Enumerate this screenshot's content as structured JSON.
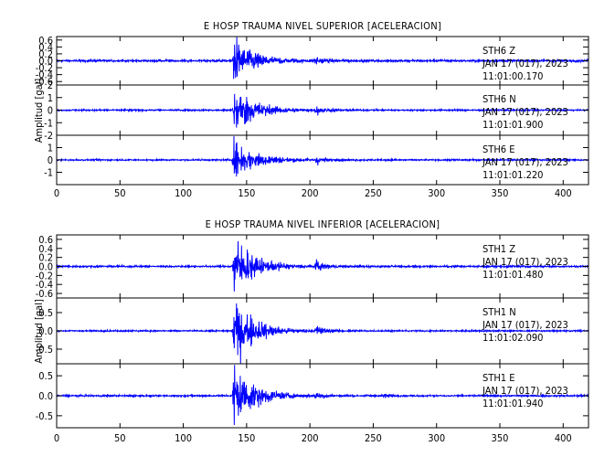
{
  "chart_data": [
    {
      "type": "line",
      "title": "E HOSP TRAUMA NIVEL SUPERIOR [ACELERACION]",
      "ylabel": "Amplitud [gal]",
      "xlim": [
        0,
        420
      ],
      "x_ticks": [
        0,
        50,
        100,
        150,
        200,
        250,
        300,
        350,
        400
      ],
      "color": "#0000ff",
      "traces": [
        {
          "station": "STH6",
          "component": "Z",
          "date": "JAN 17 (017), 2023",
          "time": "11:01:00.170",
          "ylim": [
            -0.7,
            0.7
          ],
          "y_ticks": [
            0.6,
            0.4,
            0.2,
            0.0,
            -0.2,
            -0.4,
            -0.6
          ],
          "y_tick_labels": [
            "0.6",
            "0.4",
            "0.2",
            "0.0",
            "-0.2",
            "-0.4",
            "-0.6"
          ],
          "events": [
            {
              "t": 140,
              "amp": 0.62,
              "decay": 16
            },
            {
              "t": 205,
              "amp": 0.12,
              "decay": 6
            }
          ],
          "noise": 0.03
        },
        {
          "station": "STH6",
          "component": "N",
          "date": "JAN 17 (017), 2023",
          "time": "11:01:01.900",
          "ylim": [
            -2,
            2
          ],
          "y_ticks": [
            2,
            1,
            0,
            -1,
            -2
          ],
          "y_tick_labels": [
            "2",
            "1",
            "0",
            "-1",
            "-2"
          ],
          "events": [
            {
              "t": 140,
              "amp": 1.9,
              "decay": 16
            },
            {
              "t": 205,
              "amp": 0.3,
              "decay": 6
            }
          ],
          "noise": 0.06
        },
        {
          "station": "STH6",
          "component": "E",
          "date": "JAN 17 (017), 2023",
          "time": "11:01:01.220",
          "ylim": [
            -2,
            2
          ],
          "y_ticks": [
            1,
            0,
            -1
          ],
          "y_tick_labels": [
            "1",
            "0",
            "-1"
          ],
          "events": [
            {
              "t": 140,
              "amp": 1.4,
              "decay": 18
            },
            {
              "t": 205,
              "amp": 0.3,
              "decay": 6
            }
          ],
          "noise": 0.06
        }
      ]
    },
    {
      "type": "line",
      "title": "E HOSP TRAUMA NIVEL INFERIOR [ACELERACION]",
      "ylabel": "Amplitud [gal]",
      "xlim": [
        0,
        420
      ],
      "x_ticks": [
        0,
        50,
        100,
        150,
        200,
        250,
        300,
        350,
        400
      ],
      "color": "#0000ff",
      "traces": [
        {
          "station": "STH1",
          "component": "Z",
          "date": "JAN 17 (017), 2023",
          "time": "11:01:01.480",
          "ylim": [
            -0.7,
            0.7
          ],
          "y_ticks": [
            0.6,
            0.4,
            0.2,
            0.0,
            -0.2,
            -0.4,
            -0.6
          ],
          "y_tick_labels": [
            "0.6",
            "0.4",
            "0.2",
            "0.0",
            "-0.2",
            "-0.4",
            "-0.6"
          ],
          "events": [
            {
              "t": 140,
              "amp": 0.62,
              "decay": 16
            },
            {
              "t": 205,
              "amp": 0.12,
              "decay": 6
            }
          ],
          "noise": 0.02
        },
        {
          "station": "STH1",
          "component": "N",
          "date": "JAN 17 (017), 2023",
          "time": "11:01:02.090",
          "ylim": [
            -0.9,
            0.9
          ],
          "y_ticks": [
            0.5,
            0.0,
            -0.5
          ],
          "y_tick_labels": [
            "0.5",
            "0.0",
            "-0.5"
          ],
          "events": [
            {
              "t": 140,
              "amp": 0.85,
              "decay": 16
            },
            {
              "t": 205,
              "amp": 0.15,
              "decay": 6
            }
          ],
          "noise": 0.02
        },
        {
          "station": "STH1",
          "component": "E",
          "date": "JAN 17 (017), 2023",
          "time": "11:01:01.940",
          "ylim": [
            -0.8,
            0.8
          ],
          "y_ticks": [
            0.5,
            0.0,
            -0.5
          ],
          "y_tick_labels": [
            "0.5",
            "0.0",
            "-0.5"
          ],
          "events": [
            {
              "t": 140,
              "amp": 0.75,
              "decay": 16
            },
            {
              "t": 205,
              "amp": 0.12,
              "decay": 6
            },
            {
              "t": 258,
              "amp": 0.05,
              "decay": 5
            }
          ],
          "noise": 0.02
        }
      ]
    }
  ]
}
